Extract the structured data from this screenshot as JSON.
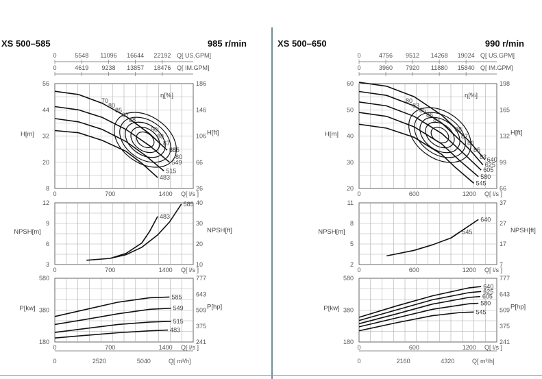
{
  "chart_data": [
    {
      "type": "line",
      "model": "XS 500–585",
      "speed": "985 r/min",
      "top_axes": [
        {
          "ticks": [
            "0",
            "5548",
            "11096",
            "16644",
            "22192"
          ],
          "unit": "Q[ US.GPM]"
        },
        {
          "ticks": [
            "0",
            "4619",
            "9238",
            "13857",
            "18476"
          ],
          "unit": "Q[ IM.GPM]"
        }
      ],
      "eff_label": "η[%]",
      "head": {
        "ylabel": "H[m]",
        "ylabel_right": "H[ft]",
        "ylim": [
          8,
          56
        ],
        "xlim": [
          0,
          1750
        ],
        "y_ticks": [
          "56",
          "44",
          "32",
          "20",
          "8"
        ],
        "y_ticks_right": [
          "186",
          "146",
          "106",
          "66",
          "26"
        ],
        "x_ticks": [
          "700",
          "1400"
        ],
        "x_unit": "Q[ l/s ]",
        "series": [
          {
            "name": "585",
            "x": [
              0,
              300,
              600,
              900,
              1200,
              1420
            ],
            "y": [
              52.5,
              51,
              47,
              41,
              33,
              25.5
            ]
          },
          {
            "name": "549",
            "x": [
              0,
              300,
              600,
              900,
              1200,
              1450
            ],
            "y": [
              45.5,
              44,
              40.5,
              35,
              27.5,
              20
            ]
          },
          {
            "name": "515",
            "x": [
              0,
              300,
              600,
              900,
              1150,
              1380
            ],
            "y": [
              40,
              38.5,
              35,
              29.5,
              23,
              16
            ]
          },
          {
            "name": "483",
            "x": [
              0,
              300,
              600,
              900,
              1100,
              1300
            ],
            "y": [
              34.5,
              33.5,
              30,
              25,
              19.5,
              13
            ]
          }
        ],
        "efficiency_labels": [
          "70",
          "80",
          "85",
          "87",
          "88",
          "90",
          "88",
          "87",
          "85",
          "80"
        ]
      },
      "npsh": {
        "ylabel": "NPSH[m]",
        "ylabel_right": "NPSH[ft]",
        "ylim": [
          3,
          13
        ],
        "xlim": [
          0,
          1750
        ],
        "y_ticks": [
          "12",
          "9",
          "6",
          "3"
        ],
        "y_ticks_right": [
          "40",
          "30",
          "20",
          "10"
        ],
        "x_ticks": [
          "700",
          "1400"
        ],
        "x_unit": "Q[ l/s ]",
        "series": [
          {
            "name": "483",
            "x": [
              400,
              700,
              900,
              1100,
              1200,
              1300
            ],
            "y": [
              3.7,
              4,
              4.8,
              6.5,
              8.4,
              10.8
            ]
          },
          {
            "name": "585",
            "x": [
              700,
              900,
              1100,
              1300,
              1450,
              1600
            ],
            "y": [
              4,
              4.6,
              5.8,
              7.8,
              9.9,
              12.8
            ]
          }
        ]
      },
      "power": {
        "ylabel": "P[kw]",
        "ylabel_right": "P[hp]",
        "ylim": [
          180,
          580
        ],
        "xlim": [
          0,
          1750
        ],
        "y_ticks": [
          "580",
          "380",
          "180"
        ],
        "y_ticks_right": [
          "777",
          "643",
          "509",
          "375",
          "241"
        ],
        "x_ticks": [
          "700",
          "1400"
        ],
        "x_unit": "Q[ l/s ]",
        "series": [
          {
            "name": "585",
            "x": [
              0,
              400,
              800,
              1200,
              1450
            ],
            "y": [
              340,
              385,
              430,
              458,
              462
            ]
          },
          {
            "name": "549",
            "x": [
              0,
              400,
              800,
              1200,
              1470
            ],
            "y": [
              290,
              323,
              357,
              385,
              392
            ]
          },
          {
            "name": "515",
            "x": [
              0,
              400,
              800,
              1200,
              1470
            ],
            "y": [
              240,
              265,
              290,
              305,
              310
            ]
          },
          {
            "name": "483",
            "x": [
              0,
              400,
              800,
              1200,
              1430
            ],
            "y": [
              205,
              222,
              238,
              250,
              255
            ]
          }
        ]
      },
      "bottom_axis": {
        "ticks": [
          "0",
          "2520",
          "5040"
        ],
        "unit": "Q[ m³/h]"
      }
    },
    {
      "type": "line",
      "model": "XS 500–650",
      "speed": "990 r/min",
      "top_axes": [
        {
          "ticks": [
            "0",
            "4756",
            "9512",
            "14268",
            "19024"
          ],
          "unit": "Q[ US.GPM]"
        },
        {
          "ticks": [
            "0",
            "3960",
            "7920",
            "11880",
            "15840"
          ],
          "unit": "Q[ IM.GPM]"
        }
      ],
      "eff_label": "η[%]",
      "head": {
        "ylabel": "H[m]",
        "ylabel_right": "H[ft]",
        "ylim": [
          20,
          60
        ],
        "xlim": [
          0,
          1500
        ],
        "y_ticks": [
          "60",
          "50",
          "40",
          "30",
          "20"
        ],
        "y_ticks_right": [
          "198",
          "165",
          "132",
          "99",
          "66"
        ],
        "x_ticks": [
          "600",
          "1200"
        ],
        "x_unit": "Q[ l/s ]",
        "series": [
          {
            "name": "640",
            "x": [
              0,
              300,
              600,
              900,
              1200,
              1370
            ],
            "y": [
              60.5,
              59,
              55,
              48,
              38,
              31
            ]
          },
          {
            "name": "625",
            "x": [
              0,
              300,
              600,
              900,
              1200,
              1350
            ],
            "y": [
              57,
              55.5,
              51.5,
              45,
              35,
              29
            ]
          },
          {
            "name": "605",
            "x": [
              0,
              300,
              600,
              900,
              1150,
              1330
            ],
            "y": [
              53,
              51.5,
              47.5,
              41,
              33,
              27
            ]
          },
          {
            "name": "580",
            "x": [
              0,
              300,
              600,
              900,
              1100,
              1300
            ],
            "y": [
              49,
              47.5,
              43.5,
              37,
              30.5,
              24.5
            ]
          },
          {
            "name": "545",
            "x": [
              0,
              300,
              600,
              900,
              1050,
              1250
            ],
            "y": [
              44.5,
              43,
              39.5,
              33,
              28,
              22
            ]
          }
        ],
        "efficiency_labels": [
          "80",
          "83",
          "85",
          "86",
          "87",
          "88",
          "87",
          "86",
          "85",
          "83"
        ]
      },
      "npsh": {
        "ylabel": "NPSH[m]",
        "ylabel_right": "NPSH[ft]",
        "ylim": [
          2,
          12
        ],
        "xlim": [
          0,
          1500
        ],
        "y_ticks": [
          "11",
          "8",
          "5",
          "2"
        ],
        "y_ticks_right": [
          "37",
          "27",
          "17",
          "7"
        ],
        "x_ticks": [
          "600",
          "1200"
        ],
        "x_unit": "Q[ l/s ]",
        "series": [
          {
            "name": "545",
            "x": [
              300,
              600,
              800,
              1000,
              1100
            ],
            "y": [
              3.4,
              4.3,
              5.2,
              6.3,
              7.3
            ]
          },
          {
            "name": "640",
            "x": [
              1000,
              1150,
              1300
            ],
            "y": [
              6.3,
              7.8,
              9.3
            ]
          }
        ]
      },
      "power": {
        "ylabel": "P[kw]",
        "ylabel_right": "P[hp]",
        "ylim": [
          180,
          580
        ],
        "xlim": [
          0,
          1500
        ],
        "y_ticks": [
          "580",
          "380",
          "180"
        ],
        "y_ticks_right": [
          "777",
          "643",
          "509",
          "375",
          "241"
        ],
        "x_ticks": [
          "600",
          "1200"
        ],
        "x_unit": "Q[ l/s ]",
        "series": [
          {
            "name": "640",
            "x": [
              0,
              400,
              800,
              1200,
              1330
            ],
            "y": [
              335,
              405,
              470,
              520,
              528
            ]
          },
          {
            "name": "625",
            "x": [
              0,
              400,
              800,
              1200,
              1330
            ],
            "y": [
              315,
              380,
              445,
              490,
              497
            ]
          },
          {
            "name": "605",
            "x": [
              0,
              400,
              800,
              1200,
              1320
            ],
            "y": [
              295,
              355,
              418,
              460,
              465
            ]
          },
          {
            "name": "580",
            "x": [
              0,
              400,
              800,
              1200,
              1300
            ],
            "y": [
              275,
              330,
              385,
              420,
              423
            ]
          },
          {
            "name": "545",
            "x": [
              0,
              400,
              800,
              1100,
              1250
            ],
            "y": [
              250,
              300,
              345,
              365,
              368
            ]
          }
        ]
      },
      "bottom_axis": {
        "ticks": [
          "0",
          "2160",
          "4320"
        ],
        "unit": "Q[ m³/h]"
      }
    }
  ]
}
